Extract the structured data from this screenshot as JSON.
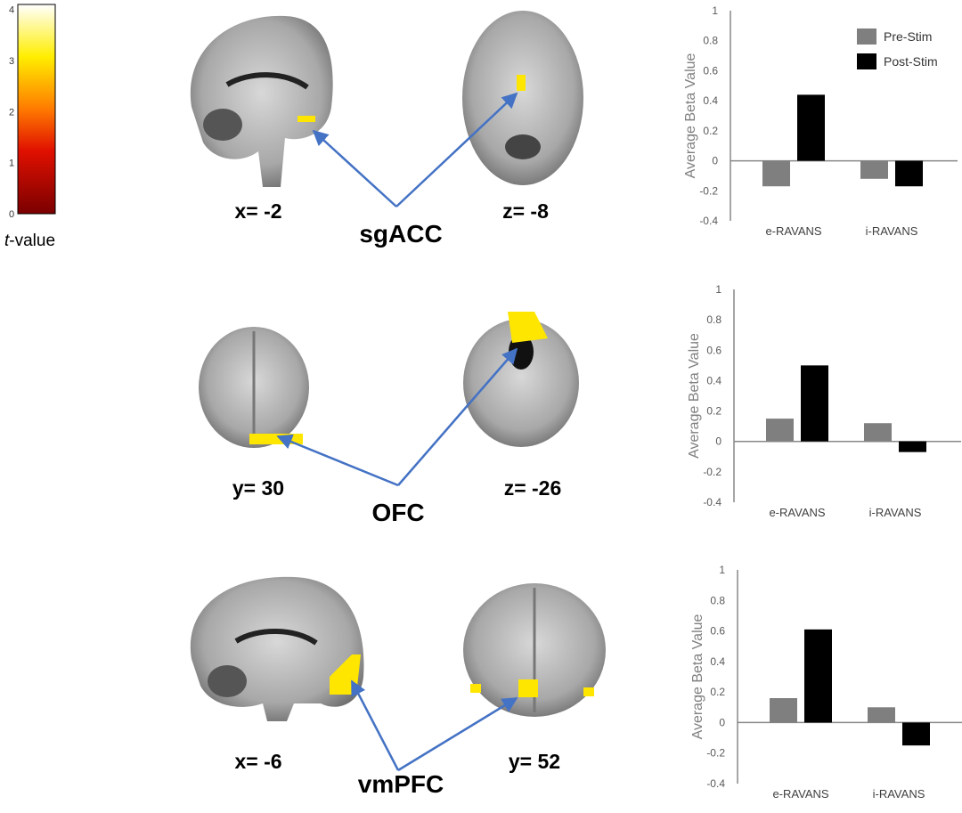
{
  "colorbar": {
    "label_italic": "t",
    "label_rest": "-value",
    "ticks": [
      "4",
      "3",
      "2",
      "1",
      "0"
    ],
    "range": [
      0,
      4.1
    ]
  },
  "panels": [
    {
      "region": "sgACC",
      "left_slice": "x= -2",
      "right_slice": "z= -8"
    },
    {
      "region": "OFC",
      "left_slice": "y= 30",
      "right_slice": "z= -26"
    },
    {
      "region": "vmPFC",
      "left_slice": "x= -6",
      "right_slice": "y= 52"
    }
  ],
  "colors": {
    "pre": "#7f7f7f",
    "post": "#000000",
    "arrow": "#4472c4",
    "blob": "#ffe600"
  },
  "chart_data": [
    {
      "type": "bar",
      "title": "",
      "ylabel": "Average Beta Value",
      "ylim": [
        -0.4,
        1
      ],
      "yticks": [
        "1",
        "0.8",
        "0.6",
        "0.4",
        "0.2",
        "0",
        "-0.2",
        "-0.4"
      ],
      "categories": [
        "e-RAVANS",
        "i-RAVANS"
      ],
      "legend": "top-right",
      "series": [
        {
          "name": "Pre-Stim",
          "values": [
            -0.17,
            -0.12
          ]
        },
        {
          "name": "Post-Stim",
          "values": [
            0.44,
            -0.17
          ]
        }
      ]
    },
    {
      "type": "bar",
      "title": "",
      "ylabel": "Average Beta Value",
      "ylim": [
        -0.4,
        1
      ],
      "yticks": [
        "1",
        "0.8",
        "0.6",
        "0.4",
        "0.2",
        "0",
        "-0.2",
        "-0.4"
      ],
      "categories": [
        "e-RAVANS",
        "i-RAVANS"
      ],
      "series": [
        {
          "name": "Pre-Stim",
          "values": [
            0.15,
            0.12
          ]
        },
        {
          "name": "Post-Stim",
          "values": [
            0.5,
            -0.07
          ]
        }
      ]
    },
    {
      "type": "bar",
      "title": "",
      "ylabel": "Average Beta Value",
      "ylim": [
        -0.4,
        1
      ],
      "yticks": [
        "1",
        "0.8",
        "0.6",
        "0.4",
        "0.2",
        "0",
        "-0.2",
        "-0.4"
      ],
      "categories": [
        "e-RAVANS",
        "i-RAVANS"
      ],
      "series": [
        {
          "name": "Pre-Stim",
          "values": [
            0.16,
            0.1
          ]
        },
        {
          "name": "Post-Stim",
          "values": [
            0.61,
            -0.15
          ]
        }
      ]
    }
  ]
}
